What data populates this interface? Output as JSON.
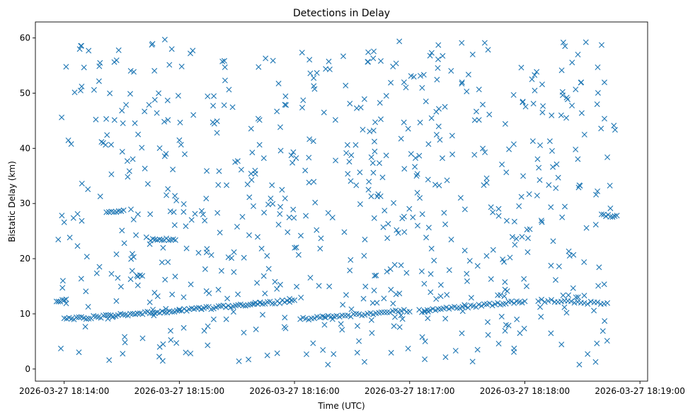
{
  "chart_data": {
    "type": "scatter",
    "title": "Detections in Delay",
    "xlabel": "Time (UTC)",
    "ylabel": "Bistatic Delay (km)",
    "marker": "x",
    "color": "#1f77b4",
    "x_unit": "seconds after 2026-03-27 18:13:00",
    "xlim": [
      45,
      364
    ],
    "ylim": [
      -2.2,
      62.9
    ],
    "x_ticks": [
      60,
      120,
      180,
      240,
      300,
      360
    ],
    "x_tick_labels": [
      "2026-03-27 18:14:00",
      "2026-03-27 18:15:00",
      "2026-03-27 18:16:00",
      "2026-03-27 18:17:00",
      "2026-03-27 18:18:00",
      "2026-03-27 18:19:00"
    ],
    "y_ticks": [
      0,
      10,
      20,
      30,
      40,
      50,
      60
    ],
    "y_tick_labels": [
      "0",
      "10",
      "20",
      "30",
      "40",
      "50",
      "60"
    ],
    "grid": false,
    "tracks": [
      {
        "x_start": 60,
        "x_end": 120,
        "y_start": 9.0,
        "y_end": 10.6,
        "count": 48
      },
      {
        "x_start": 120,
        "x_end": 180,
        "y_start": 10.6,
        "y_end": 12.4,
        "count": 48
      },
      {
        "x_start": 183,
        "x_end": 240,
        "y_start": 9.0,
        "y_end": 10.6,
        "count": 40
      },
      {
        "x_start": 245,
        "x_end": 300,
        "y_start": 10.5,
        "y_end": 12.3,
        "count": 40
      },
      {
        "x_start": 307,
        "x_end": 343,
        "y_start": 12.4,
        "y_end": 11.9,
        "count": 22
      },
      {
        "x_start": 56,
        "x_end": 61,
        "y_start": 12.4,
        "y_end": 12.4,
        "count": 6
      },
      {
        "x_start": 82,
        "x_end": 91,
        "y_start": 28.4,
        "y_end": 28.6,
        "count": 8
      },
      {
        "x_start": 105,
        "x_end": 118,
        "y_start": 23.5,
        "y_end": 23.5,
        "count": 12
      },
      {
        "x_start": 340,
        "x_end": 348,
        "y_start": 27.8,
        "y_end": 27.7,
        "count": 8
      }
    ],
    "scatter": {
      "count": 680,
      "x_range": [
        56,
        348
      ],
      "y_range": [
        0.8,
        59.8
      ],
      "seed": 20260327
    }
  }
}
